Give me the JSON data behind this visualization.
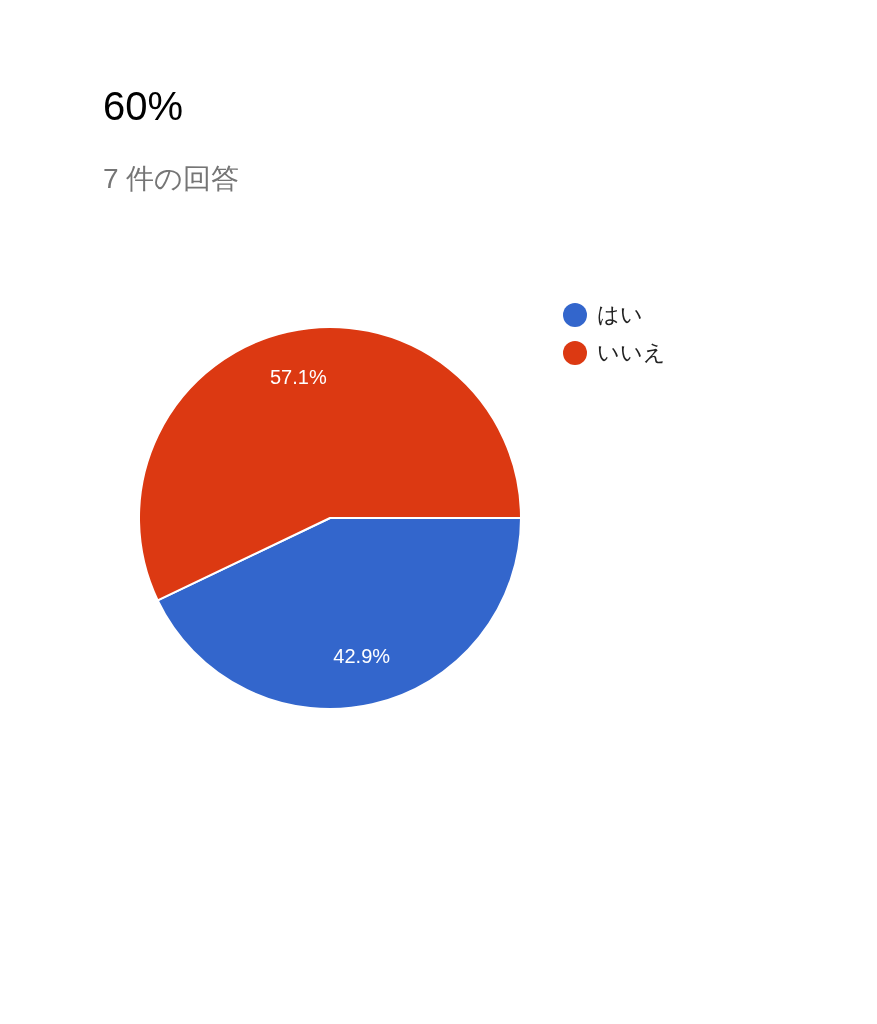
{
  "chart_data": {
    "type": "pie",
    "title": "60%",
    "subtitle": "7 件の回答",
    "categories": [
      "はい",
      "いいえ"
    ],
    "values": [
      42.9,
      57.1
    ],
    "value_labels": [
      "42.9%",
      "57.1%"
    ],
    "colors": [
      "#3366cc",
      "#dc3912"
    ],
    "legend": "top right"
  }
}
